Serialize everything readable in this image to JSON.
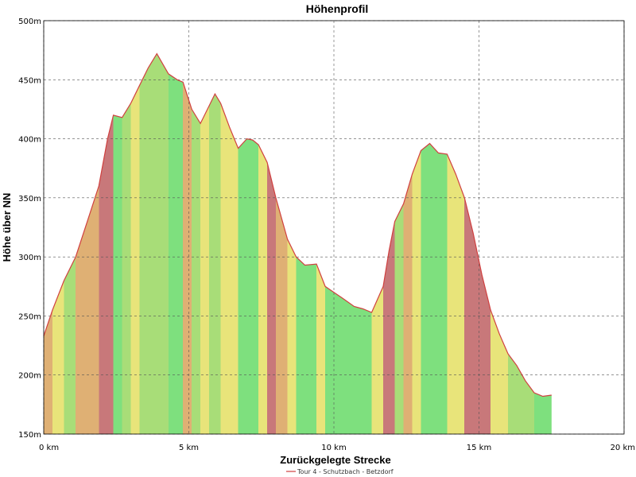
{
  "chart_data": {
    "type": "area",
    "title": "Höhenprofil",
    "xlabel": "Zurückgelegte Strecke",
    "ylabel": "Höhe über NN",
    "xlim": [
      0,
      20
    ],
    "ylim": [
      150,
      500
    ],
    "x_ticks": [
      0,
      5,
      10,
      15,
      20
    ],
    "x_tick_labels": [
      "0 km",
      "5 km",
      "10 km",
      "15 km",
      "20 km"
    ],
    "y_ticks": [
      150,
      200,
      250,
      300,
      350,
      400,
      450,
      500
    ],
    "y_tick_labels": [
      "150m",
      "200m",
      "250m",
      "300m",
      "350m",
      "400m",
      "450m",
      "500m"
    ],
    "grid": true,
    "legend_position": "bottom",
    "series": [
      {
        "name": "Tour 4 - Schutzbach - Betzdorf",
        "color": "#d04040",
        "x": [
          0,
          0.3,
          0.7,
          1.1,
          1.5,
          1.9,
          2.2,
          2.4,
          2.7,
          3.0,
          3.3,
          3.6,
          3.9,
          4.3,
          4.6,
          4.8,
          5.1,
          5.4,
          5.7,
          5.9,
          6.1,
          6.4,
          6.7,
          7.0,
          7.2,
          7.4,
          7.7,
          8.0,
          8.4,
          8.7,
          9.0,
          9.4,
          9.7,
          10.0,
          10.3,
          10.7,
          11.0,
          11.3,
          11.7,
          11.9,
          12.1,
          12.4,
          12.7,
          13.0,
          13.3,
          13.6,
          13.9,
          14.2,
          14.5,
          14.8,
          15.1,
          15.4,
          15.7,
          16.0,
          16.3,
          16.6,
          16.9,
          17.2,
          17.5
        ],
        "y": [
          233,
          255,
          280,
          300,
          330,
          360,
          400,
          420,
          418,
          430,
          445,
          460,
          472,
          455,
          450,
          448,
          425,
          413,
          428,
          438,
          430,
          410,
          392,
          400,
          399,
          395,
          380,
          350,
          315,
          300,
          293,
          294,
          275,
          270,
          265,
          258,
          256,
          253,
          275,
          305,
          330,
          345,
          370,
          390,
          396,
          388,
          387,
          370,
          350,
          320,
          285,
          255,
          235,
          218,
          208,
          195,
          185,
          182,
          183
        ]
      }
    ]
  }
}
